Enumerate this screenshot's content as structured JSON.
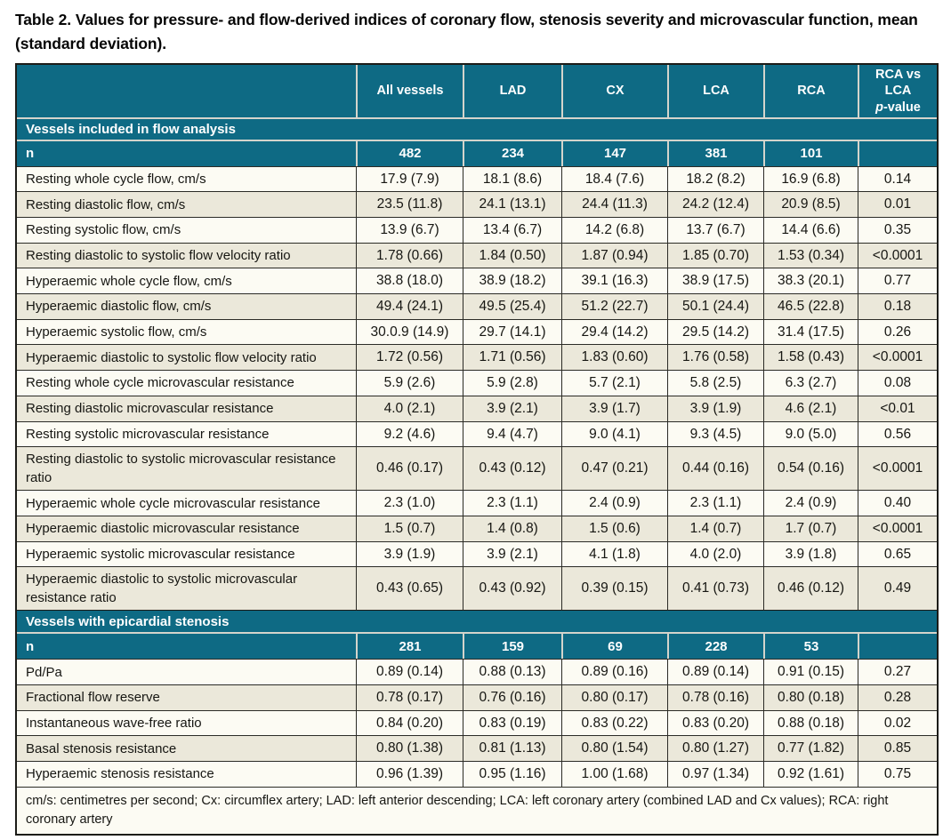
{
  "title": "Table 2. Values for pressure- and flow-derived indices of coronary flow, stenosis severity and microvascular function, mean (standard deviation).",
  "colors": {
    "header_bg": "#0e6a84",
    "header_text": "#ffffff",
    "separator_light": "#d4d4cc",
    "row_bg": "#fcfbf3",
    "row_alt_bg": "#ebe8da",
    "border_dark": "#1c1c18",
    "border_cell": "#2b2b26"
  },
  "table": {
    "columns": [
      "All vessels",
      "LAD",
      "CX",
      "LCA",
      "RCA"
    ],
    "p_value_header": {
      "line1": "RCA vs LCA",
      "italic_part": "p",
      "rest": "-value"
    },
    "sections": [
      {
        "label": "Vessels included in flow analysis",
        "n_label": "n",
        "n": [
          "482",
          "234",
          "147",
          "381",
          "101"
        ],
        "rows": [
          {
            "label": "Resting whole cycle flow, cm/s",
            "values": [
              "17.9 (7.9)",
              "18.1 (8.6)",
              "18.4 (7.6)",
              "18.2 (8.2)",
              "16.9 (6.8)",
              "0.14"
            ]
          },
          {
            "label": "Resting diastolic flow, cm/s",
            "values": [
              "23.5 (11.8)",
              "24.1 (13.1)",
              "24.4 (11.3)",
              "24.2 (12.4)",
              "20.9 (8.5)",
              "0.01"
            ]
          },
          {
            "label": "Resting systolic flow, cm/s",
            "values": [
              "13.9 (6.7)",
              "13.4 (6.7)",
              "14.2 (6.8)",
              "13.7 (6.7)",
              "14.4 (6.6)",
              "0.35"
            ]
          },
          {
            "label": "Resting diastolic to systolic flow velocity ratio",
            "values": [
              "1.78 (0.66)",
              "1.84 (0.50)",
              "1.87 (0.94)",
              "1.85 (0.70)",
              "1.53 (0.34)",
              "<0.0001"
            ]
          },
          {
            "label": "Hyperaemic whole cycle flow, cm/s",
            "values": [
              "38.8 (18.0)",
              "38.9 (18.2)",
              "39.1 (16.3)",
              "38.9 (17.5)",
              "38.3 (20.1)",
              "0.77"
            ]
          },
          {
            "label": "Hyperaemic diastolic flow, cm/s",
            "values": [
              "49.4 (24.1)",
              "49.5 (25.4)",
              "51.2 (22.7)",
              "50.1 (24.4)",
              "46.5 (22.8)",
              "0.18"
            ]
          },
          {
            "label": "Hyperaemic systolic flow, cm/s",
            "values": [
              "30.0.9 (14.9)",
              "29.7 (14.1)",
              "29.4 (14.2)",
              "29.5 (14.2)",
              "31.4 (17.5)",
              "0.26"
            ]
          },
          {
            "label": "Hyperaemic diastolic to systolic flow velocity ratio",
            "values": [
              "1.72 (0.56)",
              "1.71 (0.56)",
              "1.83 (0.60)",
              "1.76 (0.58)",
              "1.58 (0.43)",
              "<0.0001"
            ]
          },
          {
            "label": "Resting whole cycle microvascular resistance",
            "values": [
              "5.9 (2.6)",
              "5.9 (2.8)",
              "5.7 (2.1)",
              "5.8 (2.5)",
              "6.3 (2.7)",
              "0.08"
            ]
          },
          {
            "label": "Resting diastolic microvascular resistance",
            "values": [
              "4.0 (2.1)",
              "3.9 (2.1)",
              "3.9 (1.7)",
              "3.9 (1.9)",
              "4.6 (2.1)",
              "<0.01"
            ]
          },
          {
            "label": "Resting systolic microvascular resistance",
            "values": [
              "9.2 (4.6)",
              "9.4 (4.7)",
              "9.0 (4.1)",
              "9.3 (4.5)",
              "9.0 (5.0)",
              "0.56"
            ]
          },
          {
            "label": "Resting diastolic to systolic microvascular resistance ratio",
            "values": [
              "0.46 (0.17)",
              "0.43 (0.12)",
              "0.47 (0.21)",
              "0.44 (0.16)",
              "0.54 (0.16)",
              "<0.0001"
            ]
          },
          {
            "label": "Hyperaemic whole cycle microvascular resistance",
            "values": [
              "2.3 (1.0)",
              "2.3 (1.1)",
              "2.4 (0.9)",
              "2.3 (1.1)",
              "2.4 (0.9)",
              "0.40"
            ]
          },
          {
            "label": "Hyperaemic diastolic microvascular resistance",
            "values": [
              "1.5 (0.7)",
              "1.4 (0.8)",
              "1.5 (0.6)",
              "1.4 (0.7)",
              "1.7 (0.7)",
              "<0.0001"
            ]
          },
          {
            "label": "Hyperaemic systolic microvascular resistance",
            "values": [
              "3.9 (1.9)",
              "3.9 (2.1)",
              "4.1 (1.8)",
              "4.0 (2.0)",
              "3.9 (1.8)",
              "0.65"
            ]
          },
          {
            "label": "Hyperaemic diastolic to systolic microvascular resistance ratio",
            "values": [
              "0.43 (0.65)",
              "0.43 (0.92)",
              "0.39 (0.15)",
              "0.41 (0.73)",
              "0.46 (0.12)",
              "0.49"
            ]
          }
        ]
      },
      {
        "label": "Vessels with epicardial stenosis",
        "n_label": "n",
        "n": [
          "281",
          "159",
          "69",
          "228",
          "53"
        ],
        "rows": [
          {
            "label": "Pd/Pa",
            "values": [
              "0.89 (0.14)",
              "0.88 (0.13)",
              "0.89 (0.16)",
              "0.89 (0.14)",
              "0.91 (0.15)",
              "0.27"
            ]
          },
          {
            "label": "Fractional flow reserve",
            "values": [
              "0.78 (0.17)",
              "0.76 (0.16)",
              "0.80 (0.17)",
              "0.78 (0.16)",
              "0.80 (0.18)",
              "0.28"
            ]
          },
          {
            "label": "Instantaneous wave-free ratio",
            "values": [
              "0.84 (0.20)",
              "0.83 (0.19)",
              "0.83 (0.22)",
              "0.83 (0.20)",
              "0.88 (0.18)",
              "0.02"
            ]
          },
          {
            "label": "Basal stenosis resistance",
            "values": [
              "0.80 (1.38)",
              "0.81 (1.13)",
              "0.80 (1.54)",
              "0.80 (1.27)",
              "0.77 (1.82)",
              "0.85"
            ]
          },
          {
            "label": "Hyperaemic stenosis resistance",
            "values": [
              "0.96 (1.39)",
              "0.95 (1.16)",
              "1.00 (1.68)",
              "0.97 (1.34)",
              "0.92 (1.61)",
              "0.75"
            ]
          }
        ]
      }
    ],
    "footnote": "cm/s: centimetres per second; Cx: circumflex artery; LAD: left anterior descending; LCA: left coronary artery (combined LAD and Cx values); RCA: right coronary artery"
  }
}
